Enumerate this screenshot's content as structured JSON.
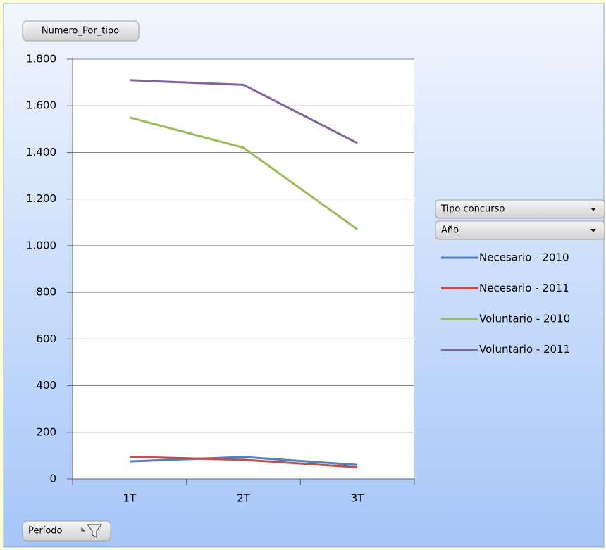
{
  "chart_data": {
    "type": "line",
    "value_field": "Numero_Por_tipo",
    "legend_fields": [
      "Tipo concurso",
      "Año"
    ],
    "axis_field": "Período",
    "categories": [
      "1T",
      "2T",
      "3T"
    ],
    "series": [
      {
        "name": "Necesario - 2010",
        "color": "#4f81bd",
        "values": [
          75,
          94,
          60
        ]
      },
      {
        "name": "Necesario - 2011",
        "color": "#c0504d",
        "values": [
          95,
          82,
          50
        ]
      },
      {
        "name": "Voluntario - 2010",
        "color": "#9bbb59",
        "values": [
          1550,
          1420,
          1070
        ]
      },
      {
        "name": "Voluntario - 2011",
        "color": "#8064a2",
        "values": [
          1710,
          1690,
          1440
        ]
      }
    ],
    "ylim": [
      0,
      1800
    ],
    "yticks": [
      0,
      200,
      400,
      600,
      800,
      {
        "value": 1000,
        "label": "1.000"
      },
      {
        "value": 1200,
        "label": "1.200"
      },
      {
        "value": 1400,
        "label": "1.400"
      },
      {
        "value": 1600,
        "label": "1.600"
      },
      {
        "value": 1800,
        "label": "1.800"
      }
    ],
    "grid": true,
    "legend": "right"
  }
}
